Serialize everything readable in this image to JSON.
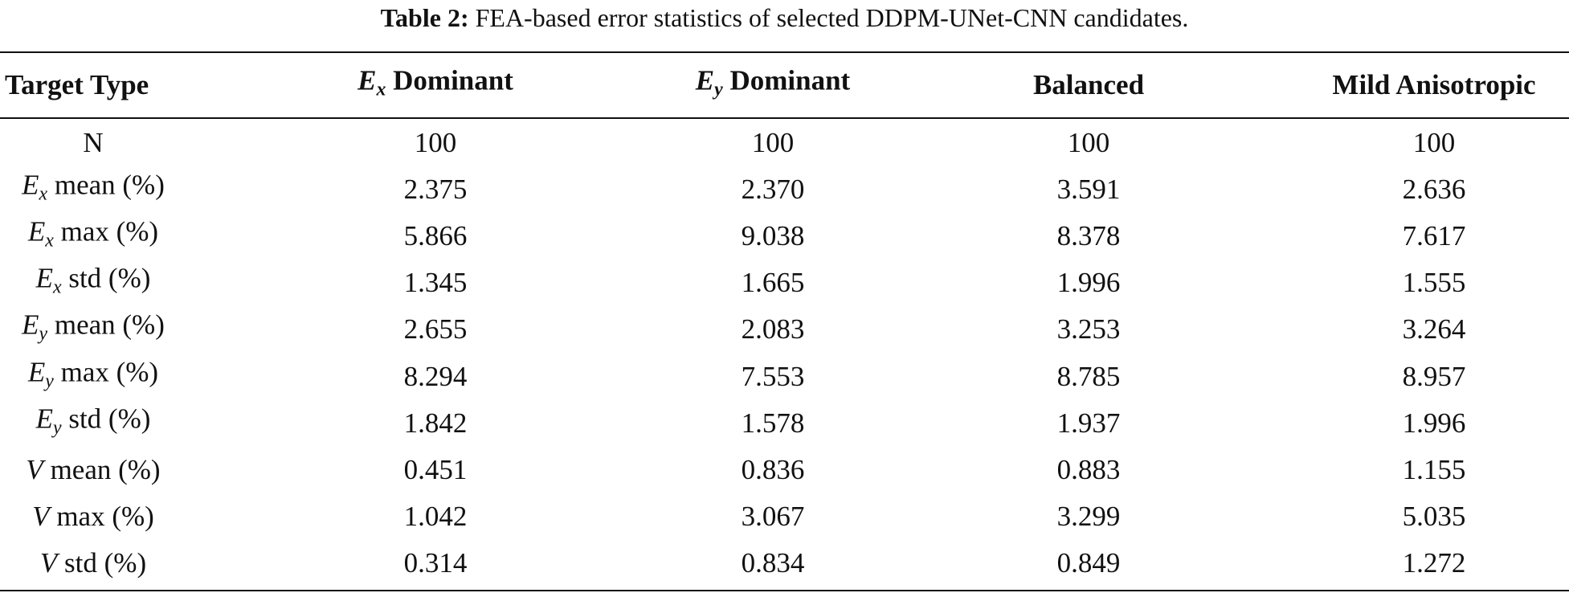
{
  "caption": {
    "label": "Table 2:",
    "text": "FEA-based error statistics of selected DDPM-UNet-CNN candidates."
  },
  "table": {
    "header": [
      {
        "text": "Target Type"
      },
      {
        "symbol": "E",
        "sub": "x",
        "text": "Dominant"
      },
      {
        "symbol": "E",
        "sub": "y",
        "text": "Dominant"
      },
      {
        "text": "Balanced"
      },
      {
        "text": "Mild Anisotropic"
      }
    ],
    "rows": [
      {
        "label": {
          "text": "N"
        },
        "cells": [
          "100",
          "100",
          "100",
          "100"
        ]
      },
      {
        "label": {
          "symbol": "E",
          "sub": "x",
          "text": "mean (%)"
        },
        "cells": [
          "2.375",
          "2.370",
          "3.591",
          "2.636"
        ]
      },
      {
        "label": {
          "symbol": "E",
          "sub": "x",
          "text": "max (%)"
        },
        "cells": [
          "5.866",
          "9.038",
          "8.378",
          "7.617"
        ]
      },
      {
        "label": {
          "symbol": "E",
          "sub": "x",
          "text": "std (%)"
        },
        "cells": [
          "1.345",
          "1.665",
          "1.996",
          "1.555"
        ]
      },
      {
        "label": {
          "symbol": "E",
          "sub": "y",
          "text": "mean (%)"
        },
        "cells": [
          "2.655",
          "2.083",
          "3.253",
          "3.264"
        ]
      },
      {
        "label": {
          "symbol": "E",
          "sub": "y",
          "text": "max (%)"
        },
        "cells": [
          "8.294",
          "7.553",
          "8.785",
          "8.957"
        ]
      },
      {
        "label": {
          "symbol": "E",
          "sub": "y",
          "text": "std (%)"
        },
        "cells": [
          "1.842",
          "1.578",
          "1.937",
          "1.996"
        ]
      },
      {
        "label": {
          "symbol": "V",
          "text": "mean (%)"
        },
        "cells": [
          "0.451",
          "0.836",
          "0.883",
          "1.155"
        ]
      },
      {
        "label": {
          "symbol": "V",
          "text": "max (%)"
        },
        "cells": [
          "1.042",
          "3.067",
          "3.299",
          "5.035"
        ]
      },
      {
        "label": {
          "symbol": "V",
          "text": "std (%)"
        },
        "cells": [
          "0.314",
          "0.834",
          "0.849",
          "1.272"
        ]
      }
    ]
  }
}
